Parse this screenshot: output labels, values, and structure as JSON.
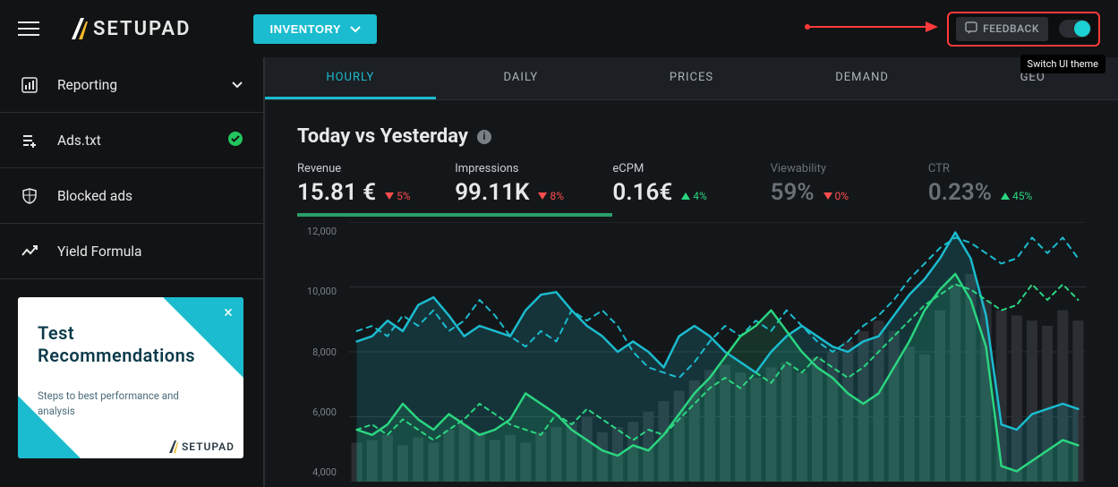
{
  "brand": {
    "name": "SETUPAD"
  },
  "topbar": {
    "inventory_label": "INVENTORY",
    "feedback_label": "FEEDBACK",
    "tooltip": "Switch UI theme"
  },
  "sidebar": {
    "items": [
      {
        "label": "Reporting",
        "icon": "bar-chart",
        "trailing": "chevron"
      },
      {
        "label": "Ads.txt",
        "icon": "list-plus",
        "trailing": "check"
      },
      {
        "label": "Blocked ads",
        "icon": "shield",
        "trailing": null
      },
      {
        "label": "Yield Formula",
        "icon": "trend",
        "trailing": null
      }
    ],
    "promo": {
      "title_l1": "Test",
      "title_l2": "Recommendations",
      "subtitle": "Steps to best performance and analysis",
      "brand": "SETUPAD"
    }
  },
  "tabs": [
    "HOURLY",
    "DAILY",
    "PRICES",
    "DEMAND",
    "GEO"
  ],
  "active_tab": "HOURLY",
  "section_title": "Today vs Yesterday",
  "kpis": [
    {
      "key": "revenue",
      "label": "Revenue",
      "value": "15.81 €",
      "delta": "5%",
      "dir": "down",
      "active": true
    },
    {
      "key": "impressions",
      "label": "Impressions",
      "value": "99.11K",
      "delta": "8%",
      "dir": "down",
      "active": true
    },
    {
      "key": "ecpm",
      "label": "eCPM",
      "value": "0.16€",
      "delta": "4%",
      "dir": "up",
      "active": false
    },
    {
      "key": "viewability",
      "label": "Viewability",
      "value": "59%",
      "delta": "0%",
      "dir": "down",
      "active": false,
      "dim": true
    },
    {
      "key": "ctr",
      "label": "CTR",
      "value": "0.23%",
      "delta": "45%",
      "dir": "up",
      "active": false,
      "dim": true
    }
  ],
  "chart": {
    "type": "line+bar",
    "background_color": "#14171a",
    "grid_color": "#2b2f33",
    "ylim": [
      2000,
      12000
    ],
    "yticks": [
      "12,000",
      "10,000",
      "8,000",
      "6,000",
      "4,000"
    ],
    "bar_color": "#2b2f33",
    "bars": [
      3.5,
      3.6,
      3.8,
      3.4,
      3.7,
      3.5,
      4.0,
      4.2,
      3.9,
      3.6,
      3.8,
      3.5,
      3.9,
      4.1,
      4.3,
      4.5,
      3.9,
      4.1,
      4.3,
      4.7,
      5.1,
      5.5,
      5.9,
      6.3,
      6.5,
      6.2,
      6.0,
      6.4,
      6.6,
      6.2,
      6.8,
      7.0,
      7.4,
      7.8,
      8.2,
      7.8,
      7.2,
      6.9,
      8.6,
      9.6,
      10.0,
      9.0,
      8.6,
      8.4,
      8.2,
      8.0,
      8.6,
      8.2
    ],
    "series": {
      "teal_solid": {
        "color": "#1bbccf",
        "width": 2.5,
        "dash": null,
        "points": [
          7.4,
          7.6,
          8.2,
          7.8,
          8.8,
          9.1,
          8.4,
          7.6,
          8.0,
          7.8,
          7.6,
          8.6,
          9.2,
          9.3,
          8.6,
          8.0,
          7.6,
          7.0,
          7.4,
          7.0,
          6.4,
          7.6,
          8.0,
          7.6,
          7.0,
          6.6,
          6.2,
          7.0,
          7.6,
          8.0,
          7.6,
          7.2,
          7.0,
          7.4,
          7.6,
          8.4,
          9.2,
          9.8,
          10.6,
          11.6,
          10.6,
          8.4,
          4.2,
          4.0,
          4.6,
          4.8,
          5.0,
          4.8
        ]
      },
      "teal_dash": {
        "color": "#1bbccf",
        "width": 2,
        "dash": "6,6",
        "points": [
          7.8,
          8.0,
          7.6,
          8.4,
          8.0,
          8.6,
          7.8,
          8.2,
          9.0,
          8.4,
          7.6,
          7.2,
          7.8,
          7.4,
          8.6,
          8.2,
          8.6,
          8.0,
          7.0,
          6.4,
          6.2,
          6.0,
          6.6,
          7.4,
          8.0,
          7.6,
          8.2,
          7.8,
          8.6,
          8.0,
          7.4,
          7.0,
          7.4,
          8.0,
          8.4,
          9.0,
          9.8,
          10.4,
          11.0,
          11.4,
          11.2,
          10.8,
          10.4,
          10.6,
          11.4,
          10.8,
          11.4,
          10.6
        ]
      },
      "green_solid": {
        "color": "#2bd680",
        "width": 2.5,
        "dash": null,
        "points": [
          4.0,
          3.8,
          4.2,
          5.0,
          4.4,
          4.0,
          4.6,
          4.2,
          3.8,
          4.0,
          4.4,
          5.4,
          5.0,
          4.6,
          4.0,
          3.6,
          3.2,
          3.0,
          3.4,
          3.2,
          3.8,
          4.6,
          5.4,
          6.0,
          6.8,
          7.6,
          8.0,
          8.6,
          7.8,
          7.0,
          6.4,
          6.0,
          5.4,
          5.0,
          5.4,
          6.4,
          7.4,
          8.6,
          9.4,
          10.0,
          9.0,
          7.2,
          2.6,
          2.4,
          2.8,
          3.2,
          3.6,
          3.4
        ]
      },
      "green_dash": {
        "color": "#2bd680",
        "width": 2,
        "dash": "5,5",
        "points": [
          4.0,
          4.2,
          3.8,
          4.4,
          4.0,
          3.6,
          4.0,
          4.4,
          5.0,
          4.6,
          4.2,
          4.0,
          3.8,
          4.6,
          4.2,
          4.8,
          4.4,
          4.0,
          3.6,
          4.0,
          3.8,
          4.4,
          5.0,
          5.6,
          6.0,
          5.6,
          6.2,
          5.8,
          6.6,
          6.2,
          6.8,
          6.4,
          6.0,
          6.4,
          7.0,
          7.6,
          8.2,
          8.8,
          9.2,
          9.6,
          9.4,
          9.0,
          8.6,
          8.8,
          9.6,
          9.0,
          9.6,
          9.0
        ]
      }
    },
    "fill_series": "teal_solid",
    "fill_color": "rgba(27,188,207,0.18)",
    "fill_series2": "green_solid",
    "fill_color2": "rgba(43,214,128,0.15)"
  },
  "colors": {
    "accent": "#1bbccf",
    "success": "#2bd680",
    "danger": "#ff4d4d",
    "bg": "#111315",
    "panel": "#14171a"
  }
}
